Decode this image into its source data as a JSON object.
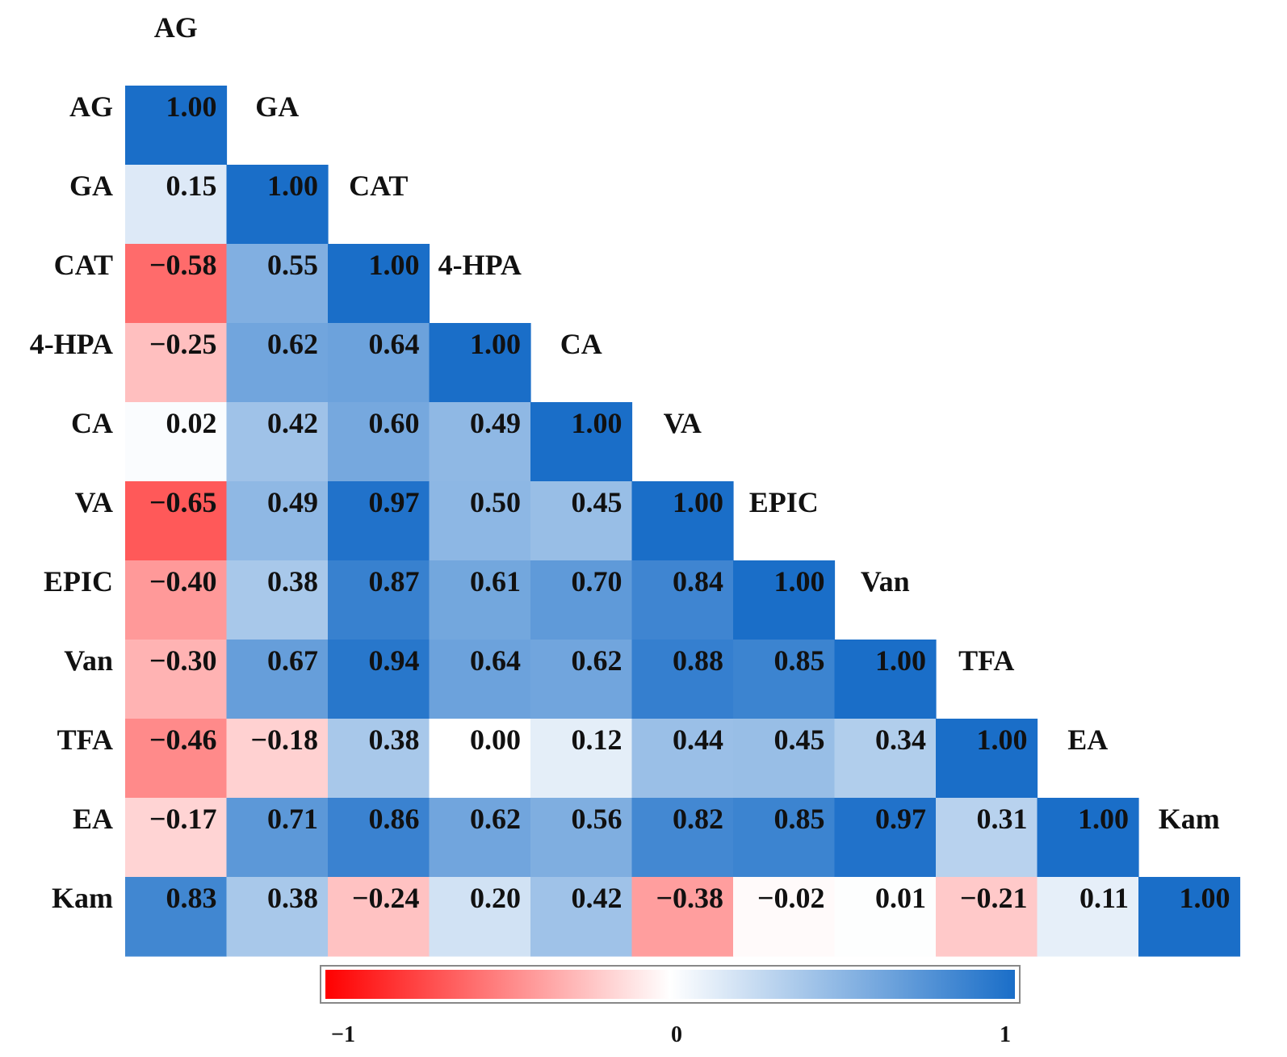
{
  "chart_data": {
    "type": "heatmap",
    "subtype": "lower-triangle correlation matrix",
    "variables": [
      "AG",
      "GA",
      "CAT",
      "4-HPA",
      "CA",
      "VA",
      "EPIC",
      "Van",
      "TFA",
      "EA",
      "Kam"
    ],
    "matrix": [
      [
        "1.00"
      ],
      [
        "0.15",
        "1.00"
      ],
      [
        "−0.58",
        "0.55",
        "1.00"
      ],
      [
        "−0.25",
        "0.62",
        "0.64",
        "1.00"
      ],
      [
        "0.02",
        "0.42",
        "0.60",
        "0.49",
        "1.00"
      ],
      [
        "−0.65",
        "0.49",
        "0.97",
        "0.50",
        "0.45",
        "1.00"
      ],
      [
        "−0.40",
        "0.38",
        "0.87",
        "0.61",
        "0.70",
        "0.84",
        "1.00"
      ],
      [
        "−0.30",
        "0.67",
        "0.94",
        "0.64",
        "0.62",
        "0.88",
        "0.85",
        "1.00"
      ],
      [
        "−0.46",
        "−0.18",
        "0.38",
        "0.00",
        "0.12",
        "0.44",
        "0.45",
        "0.34",
        "1.00"
      ],
      [
        "−0.17",
        "0.71",
        "0.86",
        "0.62",
        "0.56",
        "0.82",
        "0.85",
        "0.97",
        "0.31",
        "1.00"
      ],
      [
        "0.83",
        "0.38",
        "−0.24",
        "0.20",
        "0.42",
        "−0.38",
        "−0.02",
        "0.01",
        "−0.21",
        "0.11",
        "1.00"
      ]
    ],
    "color_scale": {
      "min": -1,
      "mid": 0,
      "max": 1,
      "min_color": "#ff0000",
      "mid_color": "#ffffff",
      "max_color": "#1a6ec8",
      "tick_labels": [
        "−1",
        "0",
        "1"
      ]
    }
  }
}
